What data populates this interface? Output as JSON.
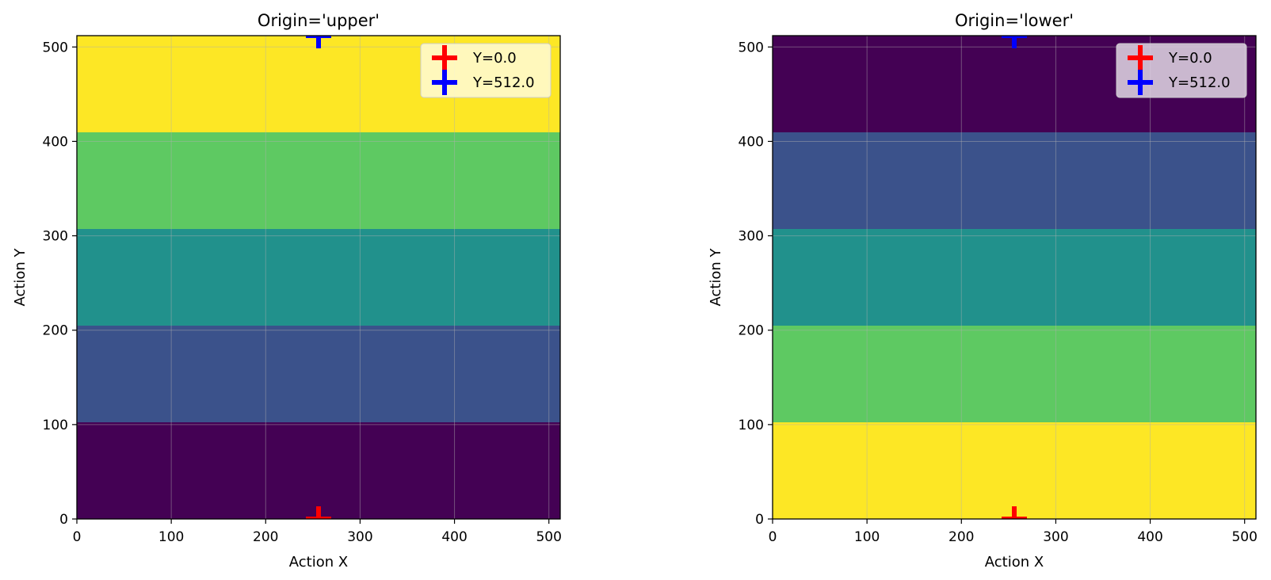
{
  "chart_data": [
    {
      "type": "heatmap",
      "title": "Origin='upper'",
      "xlabel": "Action X",
      "ylabel": "Action Y",
      "xlim": [
        0,
        512
      ],
      "ylim": [
        0,
        512
      ],
      "xticks": [
        0,
        100,
        200,
        300,
        400,
        500
      ],
      "yticks": [
        0,
        100,
        200,
        300,
        400,
        500
      ],
      "grid": true,
      "bands": [
        {
          "y_start": 0,
          "y_end": 102.4,
          "color": "#440154"
        },
        {
          "y_start": 102.4,
          "y_end": 204.8,
          "color": "#3b528b"
        },
        {
          "y_start": 204.8,
          "y_end": 307.2,
          "color": "#21918c"
        },
        {
          "y_start": 307.2,
          "y_end": 409.6,
          "color": "#5ec962"
        },
        {
          "y_start": 409.6,
          "y_end": 512,
          "color": "#fde725"
        }
      ],
      "markers": [
        {
          "label": "Y=0.0",
          "x": 256,
          "y": 0,
          "color": "#ff0000"
        },
        {
          "label": "Y=512.0",
          "x": 256,
          "y": 512,
          "color": "#0000ff"
        }
      ],
      "legend": {
        "position": "top-right",
        "background": "#fffad2"
      }
    },
    {
      "type": "heatmap",
      "title": "Origin='lower'",
      "xlabel": "Action X",
      "ylabel": "Action Y",
      "xlim": [
        0,
        512
      ],
      "ylim": [
        0,
        512
      ],
      "xticks": [
        0,
        100,
        200,
        300,
        400,
        500
      ],
      "yticks": [
        0,
        100,
        200,
        300,
        400,
        500
      ],
      "grid": true,
      "bands": [
        {
          "y_start": 0,
          "y_end": 102.4,
          "color": "#fde725"
        },
        {
          "y_start": 102.4,
          "y_end": 204.8,
          "color": "#5ec962"
        },
        {
          "y_start": 204.8,
          "y_end": 307.2,
          "color": "#21918c"
        },
        {
          "y_start": 307.2,
          "y_end": 409.6,
          "color": "#3b528b"
        },
        {
          "y_start": 409.6,
          "y_end": 512,
          "color": "#440154"
        }
      ],
      "markers": [
        {
          "label": "Y=0.0",
          "x": 256,
          "y": 0,
          "color": "#ff0000"
        },
        {
          "label": "Y=512.0",
          "x": 256,
          "y": 512,
          "color": "#0000ff"
        }
      ],
      "legend": {
        "position": "top-right",
        "background": "#ddd2e0"
      }
    }
  ]
}
